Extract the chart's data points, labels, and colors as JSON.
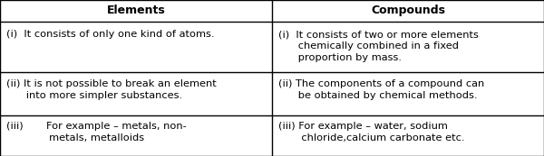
{
  "col1_header": "Elements",
  "col2_header": "Compounds",
  "rows": [
    {
      "left": "(i)  It consists of only one kind of atoms.",
      "right": "(i)  It consists of two or more elements\n      chemically combined in a fixed\n      proportion by mass."
    },
    {
      "left": "(ii) It is not possible to break an element\n      into more simpler substances.",
      "right": "(ii) The components of a compound can\n      be obtained by chemical methods."
    },
    {
      "left": "(iii)       For example – metals, non-\n             metals, metalloids",
      "right": "(iii) For example – water, sodium\n       chloride,calcium carbonate etc."
    }
  ],
  "header_bg": "#ffffff",
  "border_color": "#000000",
  "text_color": "#000000",
  "header_fontsize": 9.0,
  "cell_fontsize": 8.2,
  "col_split": 0.5,
  "row_tops": [
    1.0,
    0.862,
    0.535,
    0.262,
    0.0
  ]
}
